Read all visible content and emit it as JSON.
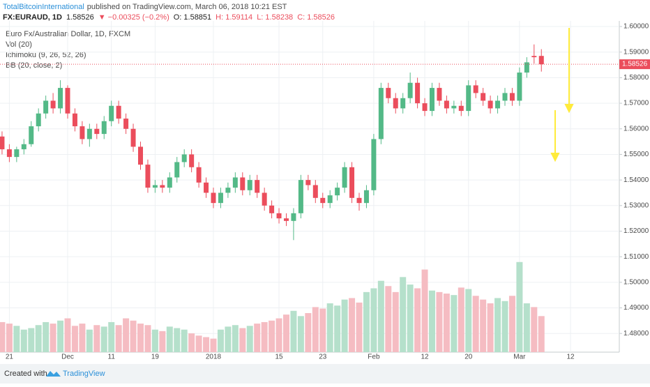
{
  "header": {
    "author": "TotalBitcoinInternational",
    "published": "published on TradingView.com, March 06, 2018 10:21 EST",
    "symbol": "FX:EURAUD, 1D",
    "last": "1.58526",
    "change": "▼ −0.00325 (−0.2%)",
    "open": "O: 1.58851",
    "high": "H: 1.59114",
    "low": "L: 1.58238",
    "close": "C: 1.58526"
  },
  "legend": [
    "Euro Fx/Australian Dollar, 1D, FXCM",
    "Vol (20)",
    "Ichimoku (9, 26, 52, 26)",
    "BB (20, close, 2)"
  ],
  "footer": {
    "created": "Created with",
    "brand": "TradingView"
  },
  "chart_data": {
    "type": "candlestick",
    "categories": [
      null,
      "21",
      null,
      null,
      null,
      null,
      null,
      null,
      null,
      "Dec",
      null,
      null,
      null,
      null,
      null,
      "11",
      null,
      null,
      null,
      null,
      null,
      "19",
      null,
      null,
      null,
      null,
      null,
      null,
      null,
      "2018",
      null,
      null,
      null,
      null,
      null,
      null,
      null,
      null,
      "15",
      null,
      null,
      null,
      null,
      null,
      "23",
      null,
      null,
      null,
      null,
      null,
      null,
      "Feb",
      null,
      null,
      null,
      null,
      null,
      null,
      "12",
      null,
      null,
      null,
      null,
      null,
      "20",
      null,
      null,
      null,
      null,
      null,
      null,
      "Mar",
      null,
      null,
      null,
      null,
      null,
      null,
      "12"
    ],
    "open": [
      1.557,
      1.552,
      1.549,
      1.552,
      1.554,
      1.561,
      1.566,
      1.571,
      1.568,
      1.576,
      1.566,
      1.561,
      1.556,
      1.56,
      1.558,
      1.563,
      1.569,
      1.564,
      1.56,
      1.553,
      1.546,
      1.537,
      1.538,
      1.537,
      1.541,
      1.547,
      1.55,
      1.545,
      1.539,
      1.535,
      1.531,
      1.535,
      1.537,
      1.541,
      1.536,
      1.54,
      1.535,
      1.53,
      1.527,
      1.525,
      1.524,
      1.527,
      1.54,
      1.538,
      1.533,
      1.531,
      1.534,
      1.537,
      1.545,
      1.533,
      1.531,
      1.536,
      1.556,
      1.576,
      1.572,
      1.568,
      1.572,
      1.578,
      1.57,
      1.567,
      1.576,
      1.571,
      1.568,
      1.569,
      1.567,
      1.577,
      1.574,
      1.571,
      1.568,
      1.571,
      1.574,
      1.571,
      1.582,
      1.5885,
      1.58851,
      null,
      null,
      null,
      null
    ],
    "high": [
      1.559,
      1.554,
      1.553,
      1.556,
      1.563,
      1.568,
      1.573,
      1.574,
      1.579,
      1.577,
      1.568,
      1.563,
      1.562,
      1.562,
      1.565,
      1.571,
      1.571,
      1.566,
      1.562,
      1.555,
      1.548,
      1.54,
      1.54,
      1.543,
      1.549,
      1.552,
      1.552,
      1.547,
      1.541,
      1.537,
      1.537,
      1.539,
      1.543,
      1.543,
      1.542,
      1.542,
      1.537,
      1.532,
      1.529,
      1.527,
      1.529,
      1.542,
      1.542,
      1.54,
      1.535,
      1.536,
      1.539,
      1.547,
      1.547,
      1.535,
      1.538,
      1.558,
      1.578,
      1.578,
      1.574,
      1.574,
      1.582,
      1.58,
      1.572,
      1.578,
      1.578,
      1.573,
      1.571,
      1.571,
      1.579,
      1.579,
      1.576,
      1.573,
      1.573,
      1.576,
      1.576,
      1.584,
      1.588,
      1.593,
      1.59114,
      null,
      null,
      null,
      null
    ],
    "low": [
      1.55,
      1.547,
      1.547,
      1.55,
      1.553,
      1.559,
      1.564,
      1.566,
      1.566,
      1.564,
      1.559,
      1.554,
      1.553,
      1.556,
      1.556,
      1.561,
      1.562,
      1.558,
      1.551,
      1.544,
      1.535,
      1.535,
      1.535,
      1.535,
      1.539,
      1.545,
      1.543,
      1.537,
      1.533,
      1.529,
      1.529,
      1.533,
      1.535,
      1.534,
      1.534,
      1.533,
      1.528,
      1.525,
      1.523,
      1.522,
      1.5165,
      1.525,
      1.536,
      1.531,
      1.529,
      1.529,
      1.532,
      1.535,
      1.531,
      1.528,
      1.529,
      1.534,
      1.554,
      1.57,
      1.566,
      1.566,
      1.57,
      1.568,
      1.565,
      1.565,
      1.569,
      1.566,
      1.566,
      1.565,
      1.565,
      1.572,
      1.569,
      1.566,
      1.566,
      1.569,
      1.569,
      1.569,
      1.58,
      1.5855,
      1.58238,
      null,
      null,
      null,
      null
    ],
    "close": [
      1.552,
      1.549,
      1.552,
      1.554,
      1.561,
      1.566,
      1.571,
      1.568,
      1.576,
      1.566,
      1.561,
      1.556,
      1.56,
      1.558,
      1.563,
      1.569,
      1.564,
      1.56,
      1.553,
      1.546,
      1.537,
      1.538,
      1.537,
      1.541,
      1.547,
      1.55,
      1.545,
      1.539,
      1.535,
      1.531,
      1.535,
      1.537,
      1.541,
      1.536,
      1.54,
      1.535,
      1.53,
      1.527,
      1.525,
      1.524,
      1.527,
      1.54,
      1.538,
      1.533,
      1.531,
      1.534,
      1.537,
      1.545,
      1.533,
      1.531,
      1.536,
      1.556,
      1.576,
      1.572,
      1.568,
      1.572,
      1.578,
      1.57,
      1.567,
      1.576,
      1.571,
      1.568,
      1.569,
      1.567,
      1.577,
      1.574,
      1.571,
      1.568,
      1.571,
      1.574,
      1.571,
      1.582,
      1.586,
      1.588,
      1.58526,
      null,
      null,
      null,
      null
    ],
    "volume": [
      40,
      38,
      35,
      30,
      32,
      36,
      40,
      38,
      42,
      45,
      35,
      38,
      30,
      36,
      34,
      40,
      36,
      45,
      42,
      38,
      36,
      30,
      28,
      34,
      32,
      30,
      25,
      22,
      20,
      18,
      30,
      34,
      36,
      32,
      35,
      38,
      40,
      42,
      45,
      50,
      55,
      48,
      52,
      60,
      58,
      65,
      62,
      70,
      72,
      66,
      80,
      85,
      95,
      88,
      80,
      100,
      90,
      85,
      110,
      82,
      80,
      78,
      76,
      86,
      84,
      75,
      70,
      65,
      72,
      68,
      75,
      120,
      65,
      60,
      48,
      null,
      null,
      null,
      null
    ],
    "vol_ylim": [
      0,
      130
    ],
    "up_color": "#53b987",
    "down_color": "#eb4d5c",
    "vol_up_color": "#b5e0cb",
    "vol_down_color": "#f5bcc2",
    "ylim": [
      1.4727,
      1.6011
    ],
    "yticks": [
      {
        "value": 1.48,
        "label": "1.48000"
      },
      {
        "value": 1.49,
        "label": "1.49000"
      },
      {
        "value": 1.5,
        "label": "1.50000"
      },
      {
        "value": 1.51,
        "label": "1.51000"
      },
      {
        "value": 1.52,
        "label": "1.52000"
      },
      {
        "value": 1.53,
        "label": "1.53000"
      },
      {
        "value": 1.54,
        "label": "1.54000"
      },
      {
        "value": 1.55,
        "label": "1.55000"
      },
      {
        "value": 1.56,
        "label": "1.56000"
      },
      {
        "value": 1.57,
        "label": "1.57000"
      },
      {
        "value": 1.58,
        "label": "1.58000"
      },
      {
        "value": 1.59,
        "label": "1.59000"
      },
      {
        "value": 1.6,
        "label": "1.60000"
      }
    ],
    "last_price": {
      "value": 1.58526,
      "label": "1.58526"
    },
    "grid": true
  }
}
